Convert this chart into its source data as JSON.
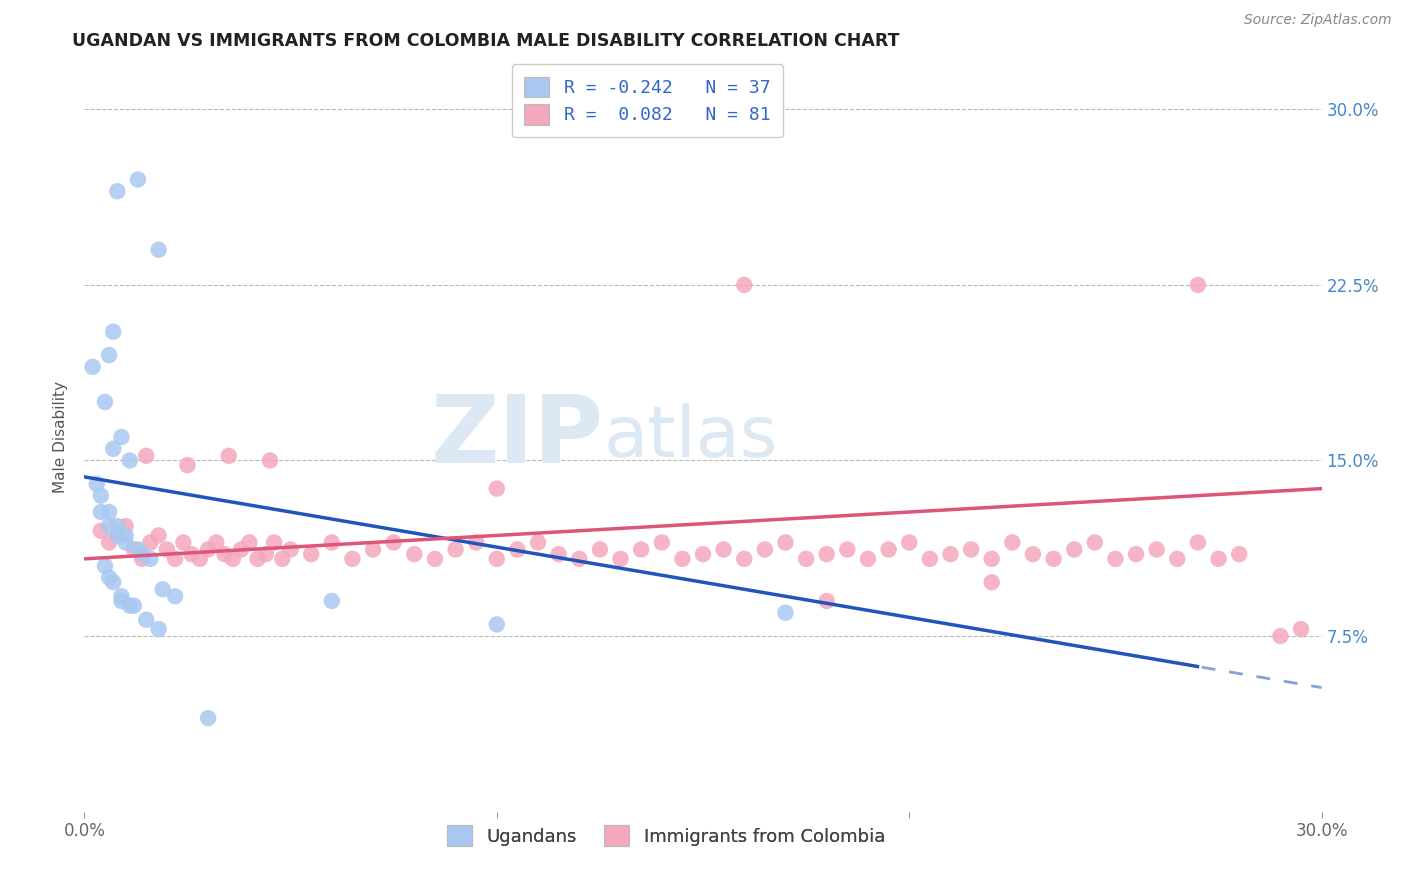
{
  "title": "UGANDAN VS IMMIGRANTS FROM COLOMBIA MALE DISABILITY CORRELATION CHART",
  "source": "Source: ZipAtlas.com",
  "ylabel": "Male Disability",
  "right_yticks": [
    "7.5%",
    "15.0%",
    "22.5%",
    "30.0%"
  ],
  "right_ytick_vals": [
    0.075,
    0.15,
    0.225,
    0.3
  ],
  "xlim": [
    0.0,
    0.3
  ],
  "ylim": [
    0.0,
    0.32
  ],
  "ugandan_color": "#a8c8f0",
  "colombia_color": "#f4a8bc",
  "ugandan_line_color": "#2255bb",
  "colombia_line_color": "#dd5577",
  "ugandan_R": -0.242,
  "ugandan_N": 37,
  "colombia_R": 0.082,
  "colombia_N": 81,
  "legend_label_1": "Ugandans",
  "legend_label_2": "Immigrants from Colombia",
  "watermark_zip": "ZIP",
  "watermark_atlas": "atlas",
  "ugandan_x": [
    0.008,
    0.013,
    0.018,
    0.006,
    0.007,
    0.002,
    0.005,
    0.007,
    0.009,
    0.011,
    0.003,
    0.004,
    0.006,
    0.008,
    0.01,
    0.004,
    0.006,
    0.008,
    0.01,
    0.013,
    0.005,
    0.007,
    0.009,
    0.011,
    0.014,
    0.016,
    0.019,
    0.022,
    0.006,
    0.009,
    0.012,
    0.015,
    0.018,
    0.06,
    0.17,
    0.1,
    0.03
  ],
  "ugandan_y": [
    0.265,
    0.27,
    0.24,
    0.195,
    0.205,
    0.19,
    0.175,
    0.155,
    0.16,
    0.15,
    0.14,
    0.135,
    0.128,
    0.122,
    0.118,
    0.128,
    0.122,
    0.118,
    0.115,
    0.112,
    0.105,
    0.098,
    0.09,
    0.088,
    0.11,
    0.108,
    0.095,
    0.092,
    0.1,
    0.092,
    0.088,
    0.082,
    0.078,
    0.09,
    0.085,
    0.08,
    0.04
  ],
  "colombia_x": [
    0.004,
    0.006,
    0.008,
    0.01,
    0.012,
    0.014,
    0.016,
    0.018,
    0.02,
    0.022,
    0.024,
    0.026,
    0.028,
    0.03,
    0.032,
    0.034,
    0.036,
    0.038,
    0.04,
    0.042,
    0.044,
    0.046,
    0.048,
    0.05,
    0.055,
    0.06,
    0.065,
    0.07,
    0.075,
    0.08,
    0.085,
    0.09,
    0.095,
    0.1,
    0.105,
    0.11,
    0.115,
    0.12,
    0.125,
    0.13,
    0.135,
    0.14,
    0.145,
    0.15,
    0.155,
    0.16,
    0.165,
    0.17,
    0.175,
    0.18,
    0.185,
    0.19,
    0.195,
    0.2,
    0.205,
    0.21,
    0.215,
    0.22,
    0.225,
    0.23,
    0.235,
    0.24,
    0.245,
    0.25,
    0.255,
    0.26,
    0.265,
    0.27,
    0.275,
    0.28,
    0.015,
    0.025,
    0.035,
    0.045,
    0.16,
    0.27,
    0.1,
    0.22,
    0.18,
    0.29,
    0.295
  ],
  "colombia_y": [
    0.12,
    0.115,
    0.118,
    0.122,
    0.112,
    0.108,
    0.115,
    0.118,
    0.112,
    0.108,
    0.115,
    0.11,
    0.108,
    0.112,
    0.115,
    0.11,
    0.108,
    0.112,
    0.115,
    0.108,
    0.11,
    0.115,
    0.108,
    0.112,
    0.11,
    0.115,
    0.108,
    0.112,
    0.115,
    0.11,
    0.108,
    0.112,
    0.115,
    0.108,
    0.112,
    0.115,
    0.11,
    0.108,
    0.112,
    0.108,
    0.112,
    0.115,
    0.108,
    0.11,
    0.112,
    0.108,
    0.112,
    0.115,
    0.108,
    0.11,
    0.112,
    0.108,
    0.112,
    0.115,
    0.108,
    0.11,
    0.112,
    0.108,
    0.115,
    0.11,
    0.108,
    0.112,
    0.115,
    0.108,
    0.11,
    0.112,
    0.108,
    0.115,
    0.108,
    0.11,
    0.152,
    0.148,
    0.152,
    0.15,
    0.225,
    0.225,
    0.138,
    0.098,
    0.09,
    0.075,
    0.078
  ]
}
